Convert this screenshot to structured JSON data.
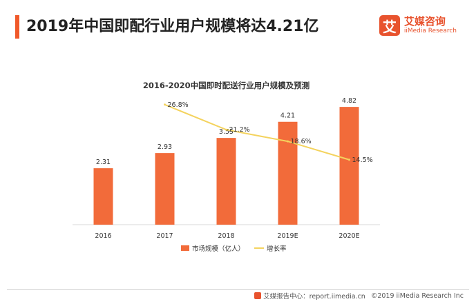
{
  "page": {
    "headline": "2019年中国即配行业用户规模将达4.21亿"
  },
  "logo": {
    "mark": "艾",
    "name_cn": "艾媒咨询",
    "name_en": "iiMedia Research"
  },
  "footer": {
    "source": "艾媒报告中心：report.iimedia.cn",
    "copyright": "©2019  iiMedia Research  Inc"
  },
  "colors": {
    "bar": "#f26b3a",
    "line": "#f4d35e",
    "accent": "#f0592a"
  },
  "chart_data": {
    "type": "bar",
    "title": "2016-2020中国即时配送行业用户规模及预测",
    "categories": [
      "2016",
      "2017",
      "2018",
      "2019E",
      "2020E"
    ],
    "series": [
      {
        "name": "市场规模（亿人）",
        "type": "bar",
        "values": [
          2.31,
          2.93,
          3.55,
          4.21,
          4.82
        ],
        "labels": [
          "2.31",
          "2.93",
          "3.55",
          "4.21",
          "4.82"
        ]
      },
      {
        "name": "增长率",
        "type": "line",
        "values": [
          null,
          26.8,
          21.2,
          18.6,
          14.5
        ],
        "labels": [
          "",
          "26.8%",
          "21.2%",
          "18.6%",
          "14.5%"
        ]
      }
    ],
    "ylim": [
      0,
      5.5
    ],
    "y2lim": [
      0,
      30
    ],
    "grid": false,
    "legend": "bottom"
  }
}
